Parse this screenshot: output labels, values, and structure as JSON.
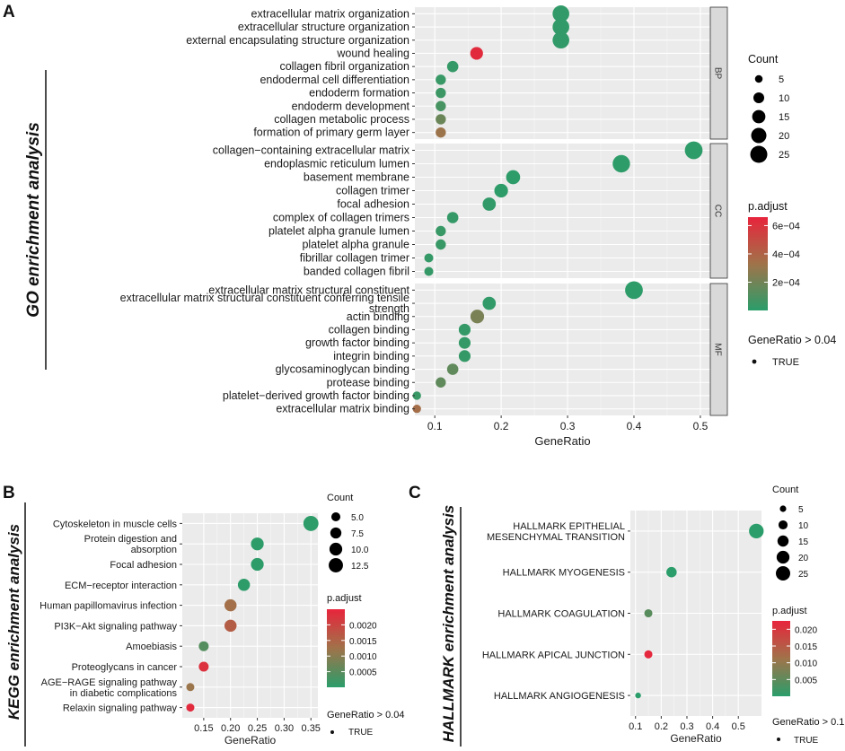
{
  "chart_data": [
    {
      "id": "A",
      "type": "scatter",
      "panel_label": "A",
      "side_title": "GO enrichment analysis",
      "xlabel": "GeneRatio",
      "xlim": [
        0.07,
        0.515
      ],
      "xticks": [
        0.1,
        0.2,
        0.3,
        0.4,
        0.5
      ],
      "xtick_labels": [
        "0.1",
        "0.2",
        "0.3",
        "0.4",
        "0.5"
      ],
      "facets": [
        {
          "name": "BP",
          "terms": [
            {
              "label": "extracellular matrix organization",
              "x": 0.29,
              "count": 24,
              "padj": 2e-05
            },
            {
              "label": "extracellular structure organization",
              "x": 0.29,
              "count": 24,
              "padj": 2e-05
            },
            {
              "label": "external encapsulating structure organization",
              "x": 0.29,
              "count": 24,
              "padj": 2e-05
            },
            {
              "label": "wound healing",
              "x": 0.163,
              "count": 14,
              "padj": 0.00063
            },
            {
              "label": "collagen fibril organization",
              "x": 0.127,
              "count": 11,
              "padj": 3e-05
            },
            {
              "label": "endodermal cell differentiation",
              "x": 0.109,
              "count": 9,
              "padj": 4e-05
            },
            {
              "label": "endoderm formation",
              "x": 0.109,
              "count": 9,
              "padj": 5e-05
            },
            {
              "label": "endoderm development",
              "x": 0.109,
              "count": 9,
              "padj": 8e-05
            },
            {
              "label": "collagen metabolic process",
              "x": 0.109,
              "count": 9,
              "padj": 0.00018
            },
            {
              "label": "formation of primary germ layer",
              "x": 0.109,
              "count": 9,
              "padj": 0.00032
            }
          ]
        },
        {
          "name": "CC",
          "terms": [
            {
              "label": "collagen−containing extracellular matrix",
              "x": 0.49,
              "count": 27,
              "padj": 1e-05
            },
            {
              "label": "endoplasmic reticulum lumen",
              "x": 0.381,
              "count": 26,
              "padj": 1e-05
            },
            {
              "label": "basement membrane",
              "x": 0.218,
              "count": 17,
              "padj": 1e-05
            },
            {
              "label": "collagen trimer",
              "x": 0.2,
              "count": 16,
              "padj": 1e-05
            },
            {
              "label": "focal adhesion",
              "x": 0.182,
              "count": 15,
              "padj": 2e-05
            },
            {
              "label": "complex of collagen trimers",
              "x": 0.127,
              "count": 11,
              "padj": 3e-05
            },
            {
              "label": "platelet alpha granule lumen",
              "x": 0.109,
              "count": 9,
              "padj": 4e-05
            },
            {
              "label": "platelet alpha granule",
              "x": 0.109,
              "count": 9,
              "padj": 4e-05
            },
            {
              "label": "fibrillar collagen trimer",
              "x": 0.091,
              "count": 7,
              "padj": 3e-05
            },
            {
              "label": "banded collagen fibril",
              "x": 0.091,
              "count": 7,
              "padj": 3e-05
            }
          ]
        },
        {
          "name": "MF",
          "terms": [
            {
              "label": "extracellular matrix structural constituent",
              "x": 0.4,
              "count": 27,
              "padj": 1e-05
            },
            {
              "label": "extracellular matrix structural constituent conferring tensile strength",
              "x": 0.182,
              "count": 15,
              "padj": 2e-05
            },
            {
              "label": "actin binding",
              "x": 0.164,
              "count": 16,
              "padj": 0.00022
            },
            {
              "label": "collagen binding",
              "x": 0.145,
              "count": 12,
              "padj": 3e-05
            },
            {
              "label": "growth factor binding",
              "x": 0.145,
              "count": 12,
              "padj": 3e-05
            },
            {
              "label": "integrin binding",
              "x": 0.145,
              "count": 12,
              "padj": 3e-05
            },
            {
              "label": "glycosaminoglycan binding",
              "x": 0.127,
              "count": 11,
              "padj": 0.00015
            },
            {
              "label": "protease binding",
              "x": 0.109,
              "count": 9,
              "padj": 0.00015
            },
            {
              "label": "platelet−derived growth factor binding",
              "x": 0.073,
              "count": 6,
              "padj": 4e-05
            },
            {
              "label": "extracellular matrix binding",
              "x": 0.073,
              "count": 6,
              "padj": 0.00035
            }
          ]
        }
      ],
      "legend_count": {
        "title": "Count",
        "values": [
          5,
          10,
          15,
          20,
          25
        ]
      },
      "legend_padj": {
        "title": "p.adjust",
        "range": [
          0.0,
          0.00066
        ],
        "ticks": [
          0.0002,
          0.0004,
          0.0006
        ],
        "tick_labels": [
          "2e−04",
          "4e−04",
          "6e−04"
        ]
      },
      "legend_ratio": {
        "title": "GeneRatio > 0.04",
        "value": "TRUE"
      }
    },
    {
      "id": "B",
      "type": "scatter",
      "panel_label": "B",
      "side_title": "KEGG enrichment analysis",
      "xlabel": "GeneRatio",
      "xlim": [
        0.11,
        0.363
      ],
      "xticks": [
        0.15,
        0.2,
        0.25,
        0.3,
        0.35
      ],
      "xtick_labels": [
        "0.15",
        "0.20",
        "0.25",
        "0.30",
        "0.35"
      ],
      "terms": [
        {
          "label": "Cytoskeleton in muscle cells",
          "x": 0.35,
          "count": 14,
          "padj": 3e-05
        },
        {
          "label": "Protein digestion and\nabsorption",
          "x": 0.25,
          "count": 10,
          "padj": 3e-05
        },
        {
          "label": "Focal adhesion",
          "x": 0.25,
          "count": 10,
          "padj": 3e-05
        },
        {
          "label": "ECM−receptor interaction",
          "x": 0.225,
          "count": 9,
          "padj": 3e-05
        },
        {
          "label": "Human papillomavirus infection",
          "x": 0.2,
          "count": 9,
          "padj": 0.0013
        },
        {
          "label": "PI3K−Akt signaling pathway",
          "x": 0.2,
          "count": 9,
          "padj": 0.0016
        },
        {
          "label": "Amoebiasis",
          "x": 0.15,
          "count": 6,
          "padj": 0.00045
        },
        {
          "label": "Proteoglycans in cancer",
          "x": 0.15,
          "count": 6,
          "padj": 0.0023
        },
        {
          "label": "AGE−RAGE signaling pathway\nin diabetic complications",
          "x": 0.125,
          "count": 4,
          "padj": 0.0012
        },
        {
          "label": "Relaxin signaling pathway",
          "x": 0.125,
          "count": 4,
          "padj": 0.0024
        }
      ],
      "legend_count": {
        "title": "Count",
        "values": [
          5.0,
          7.5,
          10.0,
          12.5
        ],
        "labels": [
          "5.0",
          "7.5",
          "10.0",
          "12.5"
        ]
      },
      "legend_padj": {
        "title": "p.adjust",
        "range": [
          0.0,
          0.0025
        ],
        "ticks": [
          0.0005,
          0.001,
          0.0015,
          0.002
        ],
        "tick_labels": [
          "0.0005",
          "0.0010",
          "0.0015",
          "0.0020"
        ]
      },
      "legend_ratio": {
        "title": "GeneRatio > 0.04",
        "value": "TRUE"
      }
    },
    {
      "id": "C",
      "type": "scatter",
      "panel_label": "C",
      "side_title": "HALLMARK enrichment analysis",
      "xlabel": "GeneRatio",
      "xlim": [
        0.08,
        0.59
      ],
      "xticks": [
        0.1,
        0.2,
        0.3,
        0.4,
        0.5
      ],
      "xtick_labels": [
        "0.1",
        "0.2",
        "0.3",
        "0.4",
        "0.5"
      ],
      "terms": [
        {
          "label": "HALLMARK EPITHELIAL\nMESENCHYMAL TRANSITION",
          "x": 0.57,
          "count": 26,
          "padj": 2e-05
        },
        {
          "label": "HALLMARK MYOGENESIS",
          "x": 0.24,
          "count": 13,
          "padj": 3e-05
        },
        {
          "label": "HALLMARK COAGULATION",
          "x": 0.15,
          "count": 8,
          "padj": 0.0045
        },
        {
          "label": "HALLMARK APICAL JUNCTION",
          "x": 0.15,
          "count": 8,
          "padj": 0.022
        },
        {
          "label": "HALLMARK ANGIOGENESIS",
          "x": 0.11,
          "count": 4,
          "padj": 3e-05
        }
      ],
      "legend_count": {
        "title": "Count",
        "values": [
          5,
          10,
          15,
          20,
          25
        ]
      },
      "legend_padj": {
        "title": "p.adjust",
        "range": [
          0.0,
          0.0225
        ],
        "ticks": [
          0.005,
          0.01,
          0.015,
          0.02
        ],
        "tick_labels": [
          "0.005",
          "0.010",
          "0.015",
          "0.020"
        ]
      },
      "legend_ratio": {
        "title": "GeneRatio > 0.1",
        "value": "TRUE"
      }
    }
  ],
  "colors": {
    "low": "#2a9d6a",
    "mid": "#a0734a",
    "high": "#e8243c",
    "panel_bg": "#ebebeb",
    "strip_bg": "#d9d9d9"
  }
}
